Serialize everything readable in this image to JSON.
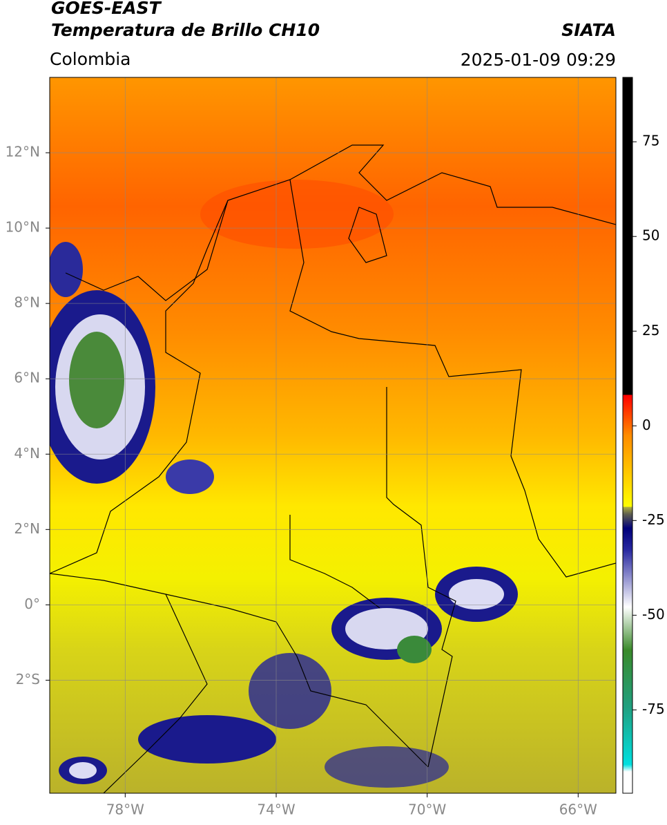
{
  "header": {
    "title": "GOES-EAST",
    "subtitle": "Temperatura de Brillo CH10",
    "region": "Colombia",
    "source": "SIATA",
    "datetime": "2025-01-09 09:29"
  },
  "map": {
    "xlim": [
      -80,
      -65
    ],
    "ylim": [
      -5,
      14
    ],
    "xticks": [
      {
        "value": -78,
        "label": "78°W"
      },
      {
        "value": -74,
        "label": "74°W"
      },
      {
        "value": -70,
        "label": "70°W"
      },
      {
        "value": -66,
        "label": "66°W"
      }
    ],
    "yticks": [
      {
        "value": 12,
        "label": "12°N"
      },
      {
        "value": 10,
        "label": "10°N"
      },
      {
        "value": 8,
        "label": "8°N"
      },
      {
        "value": 6,
        "label": "6°N"
      },
      {
        "value": 4,
        "label": "4°N"
      },
      {
        "value": 2,
        "label": "2°N"
      },
      {
        "value": 0,
        "label": "0°"
      },
      {
        "value": -2,
        "label": "2°S"
      }
    ],
    "grid": true
  },
  "colorbar": {
    "lim": [
      -97,
      92
    ],
    "ticks": [
      75,
      50,
      25,
      0,
      -25,
      -50,
      -75
    ]
  }
}
